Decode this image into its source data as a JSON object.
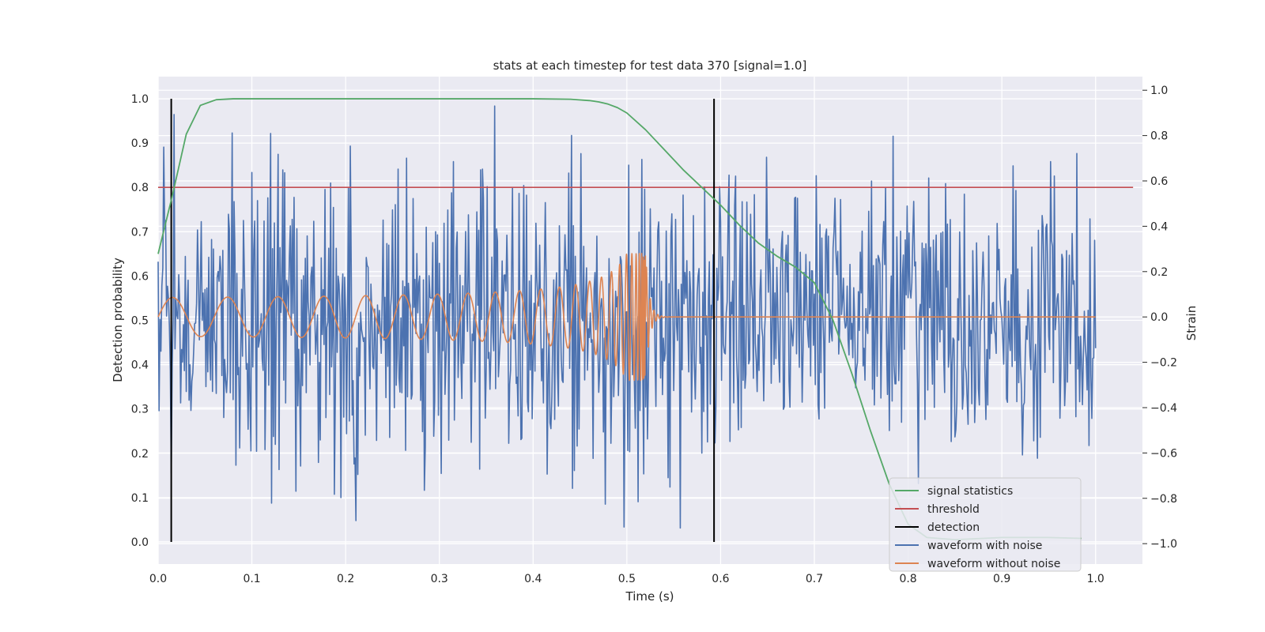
{
  "chart_data": {
    "type": "line",
    "title": "stats at each timestep for test data 370 [signal=1.0]",
    "xlabel": "Time (s)",
    "ylabel_left": "Detection probability",
    "ylabel_right": "Strain",
    "xlim": [
      0.0,
      1.05
    ],
    "ylim_left": [
      -0.05,
      1.05
    ],
    "ylim_right": [
      -1.09,
      1.06
    ],
    "x_ticks": [
      "0.0",
      "0.1",
      "0.2",
      "0.3",
      "0.4",
      "0.5",
      "0.6",
      "0.7",
      "0.8",
      "0.9",
      "1.0"
    ],
    "y_ticks_left": [
      "0.0",
      "0.1",
      "0.2",
      "0.3",
      "0.4",
      "0.5",
      "0.6",
      "0.7",
      "0.8",
      "0.9",
      "1.0"
    ],
    "y_ticks_right": [
      "−1.0",
      "−0.8",
      "−0.6",
      "−0.4",
      "−0.2",
      "0.0",
      "0.2",
      "0.4",
      "0.6",
      "0.8",
      "1.0"
    ],
    "grid": true,
    "legend_position": "lower-right",
    "threshold": 0.8,
    "detections": [
      0.014,
      0.593
    ],
    "series": [
      {
        "name": "signal statistics",
        "color": "#55a868",
        "axis": "left",
        "x": [
          0.0,
          0.015,
          0.03,
          0.045,
          0.062,
          0.08,
          0.1,
          0.2,
          0.3,
          0.4,
          0.44,
          0.46,
          0.47,
          0.48,
          0.49,
          0.5,
          0.52,
          0.54,
          0.56,
          0.58,
          0.6,
          0.62,
          0.64,
          0.66,
          0.68,
          0.7,
          0.72,
          0.74,
          0.76,
          0.78,
          0.8,
          0.82,
          0.85,
          0.9,
          0.95,
          0.985
        ],
        "y": [
          0.65,
          0.78,
          0.92,
          0.985,
          0.998,
          1.0,
          1.0,
          1.0,
          1.0,
          1.0,
          0.999,
          0.996,
          0.993,
          0.988,
          0.98,
          0.968,
          0.93,
          0.885,
          0.84,
          0.8,
          0.76,
          0.715,
          0.675,
          0.645,
          0.62,
          0.585,
          0.5,
          0.38,
          0.25,
          0.13,
          0.04,
          0.01,
          0.005,
          0.01,
          0.01,
          0.008
        ]
      },
      {
        "name": "threshold",
        "color": "#c44e52",
        "axis": "left",
        "x": [
          0.0,
          1.04
        ],
        "y": [
          0.8,
          0.8
        ]
      },
      {
        "name": "detection",
        "color": "#000000",
        "axis": "left",
        "x": [
          0.014,
          0.014,
          0.593,
          0.593
        ],
        "y": [
          0.0,
          1.0,
          0.0,
          1.0
        ]
      },
      {
        "name": "waveform with noise",
        "color": "#4c72b0",
        "axis": "right",
        "x_range": [
          0.0,
          1.0
        ],
        "y_range_visible": [
          -1.0,
          1.0
        ],
        "noise_std": 0.33
      },
      {
        "name": "waveform without noise",
        "color": "#dd8452",
        "axis": "right",
        "x_range": [
          0.0,
          1.0
        ],
        "chirp_peak_time": 0.52,
        "amplitude_start": 0.07,
        "amplitude_peak": 0.28,
        "value_after_merger": 0.0
      }
    ]
  }
}
